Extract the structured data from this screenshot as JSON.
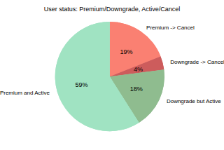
{
  "chart_data": {
    "type": "pie",
    "title": "User status: Premium/Downgrade, Active/Cancel",
    "categories": [
      "Premium -> Cancel",
      "Downgrade -> Cancel",
      "Downgrade but Active",
      "Premium and Active"
    ],
    "values": [
      19,
      4,
      18,
      59
    ],
    "value_labels": [
      "19%",
      "4%",
      "18%",
      "59%"
    ],
    "colors": [
      "#fa8072",
      "#cd5c5c",
      "#8fbc8f",
      "#a0e3c2"
    ],
    "data_labels": true
  }
}
